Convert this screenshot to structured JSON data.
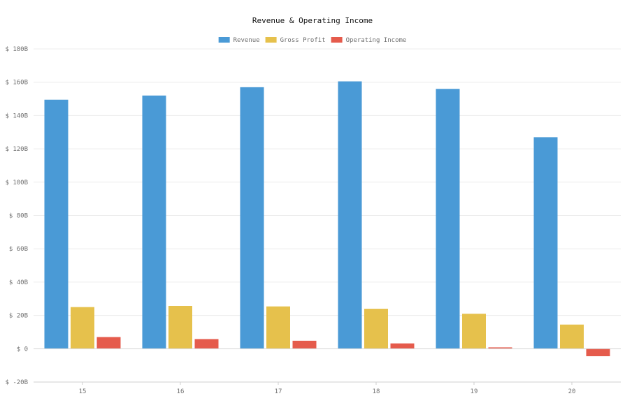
{
  "chart_data": {
    "type": "bar",
    "title": "Revenue & Operating Income",
    "xlabel": "",
    "ylabel": "",
    "categories": [
      "15",
      "16",
      "17",
      "18",
      "19",
      "20"
    ],
    "series": [
      {
        "name": "Revenue",
        "color": "#4a9ad6",
        "values": [
          149.5,
          152,
          157,
          160.5,
          156,
          127
        ]
      },
      {
        "name": "Gross Profit",
        "color": "#e6c14c",
        "values": [
          25,
          25.7,
          25.4,
          24,
          21,
          14.5
        ]
      },
      {
        "name": "Operating Income",
        "color": "#e55b4c",
        "values": [
          7,
          5.8,
          4.8,
          3.2,
          0.8,
          -4.5
        ]
      }
    ],
    "ylim": [
      -20,
      180
    ],
    "yticks": [
      -20,
      0,
      20,
      40,
      60,
      80,
      100,
      120,
      140,
      160,
      180
    ],
    "ytick_labels": [
      "$ -20B",
      "$ 0",
      "$ 20B",
      "$ 40B",
      "$ 60B",
      "$ 80B",
      "$ 100B",
      "$ 120B",
      "$ 140B",
      "$ 160B",
      "$ 180B"
    ],
    "grid": true,
    "legend_position": "top-center"
  }
}
